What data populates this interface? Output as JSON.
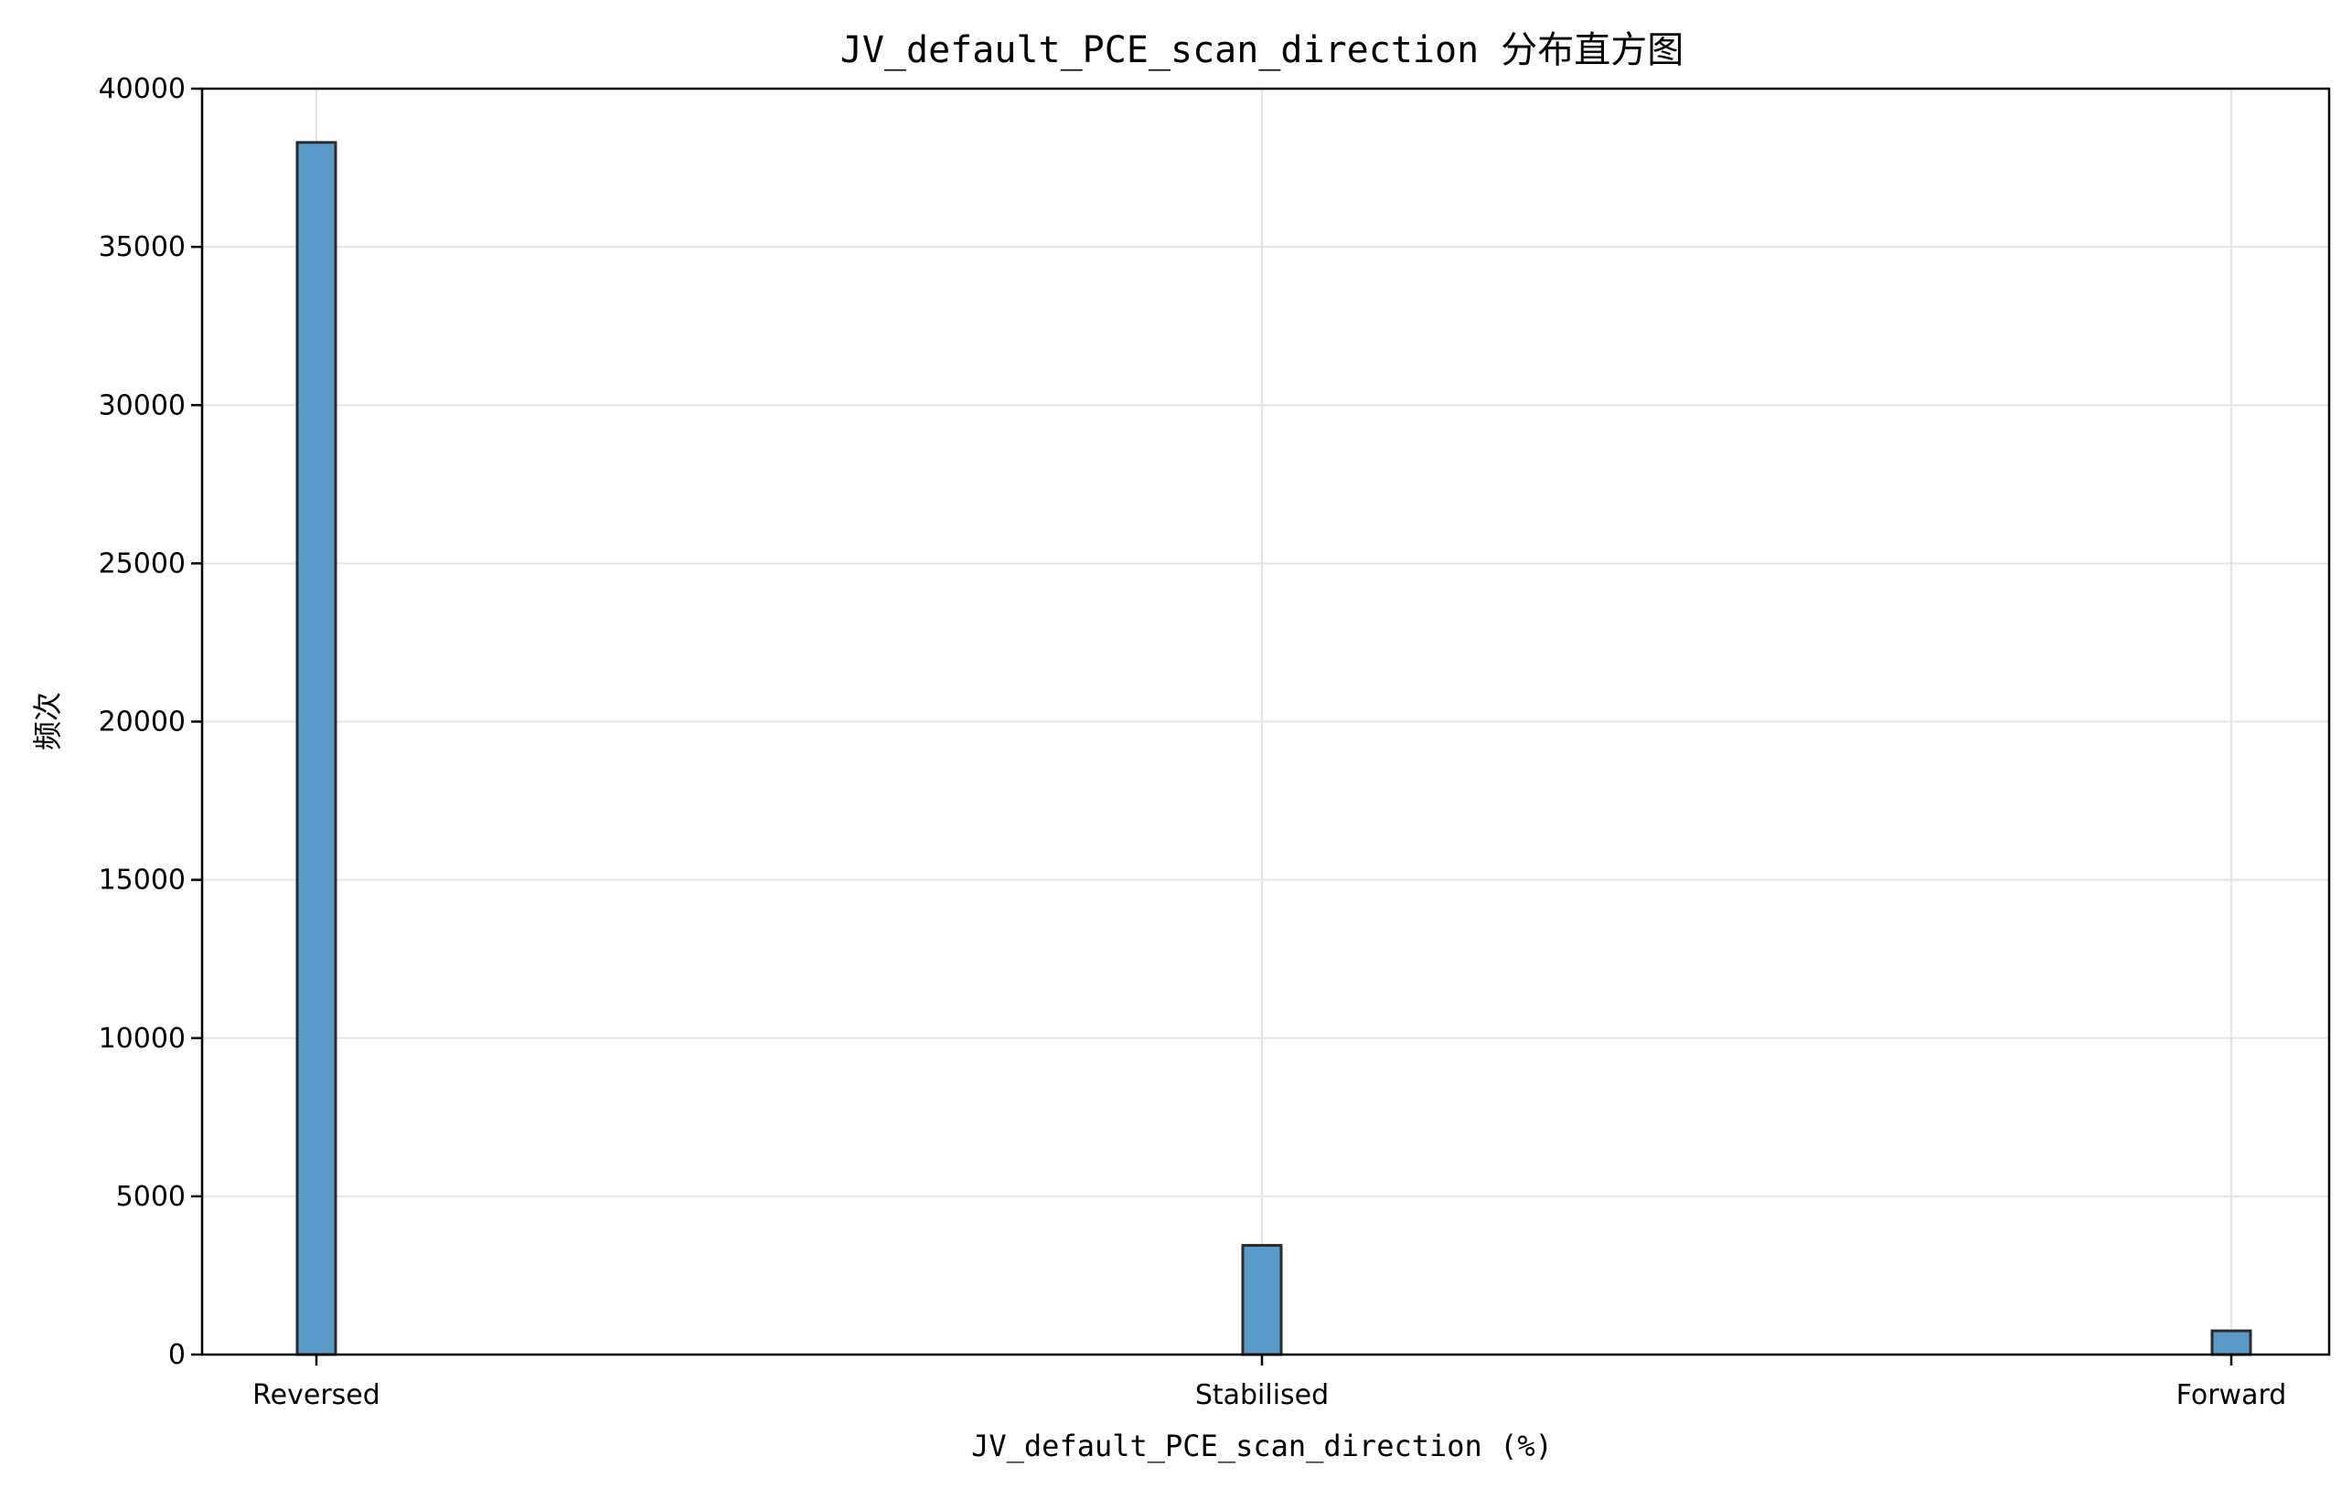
{
  "chart_data": {
    "type": "bar",
    "title": "JV_default_PCE_scan_direction 分布直方图",
    "xlabel": "JV_default_PCE_scan_direction (%)",
    "ylabel": "频次",
    "categories": [
      "Reversed",
      "Stabilised",
      "Forward"
    ],
    "values": [
      38300,
      3450,
      750
    ],
    "ylim": [
      0,
      40000
    ],
    "yticks": [
      0,
      5000,
      10000,
      15000,
      20000,
      25000,
      30000,
      35000,
      40000
    ],
    "grid": true,
    "legend": "none",
    "bar_color": "#5b9bc9",
    "edge_color": "#2b2b2b"
  }
}
